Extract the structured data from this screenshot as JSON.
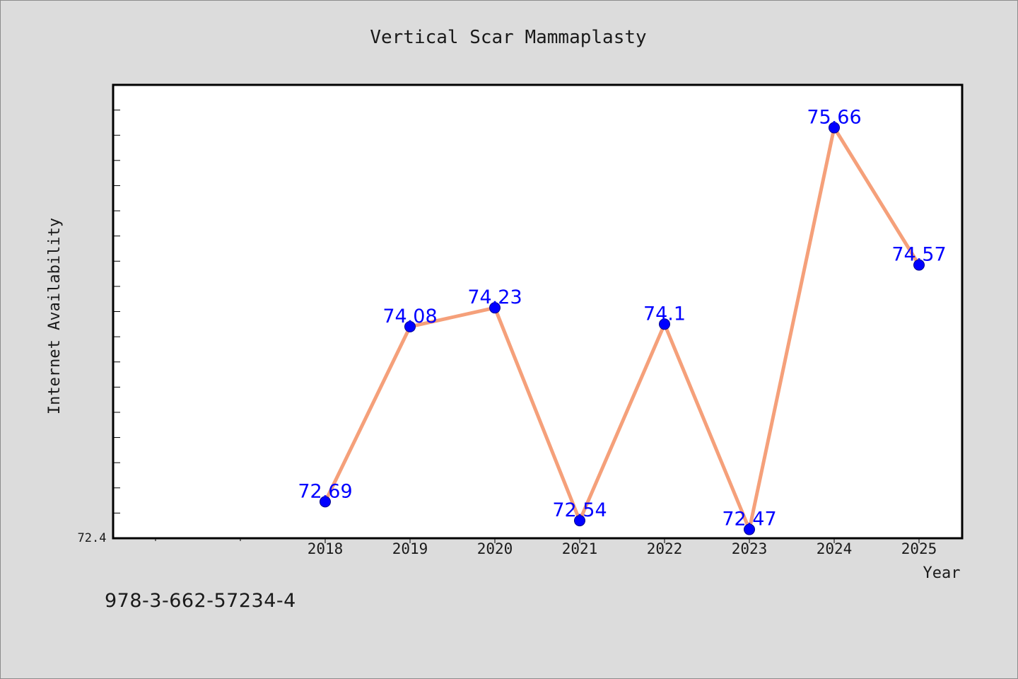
{
  "chart_data": {
    "type": "line",
    "title": "Vertical Scar Mammaplasty",
    "xlabel": "Year",
    "ylabel": "Internet Availability",
    "x": [
      "2018",
      "2019",
      "2020",
      "2021",
      "2022",
      "2023",
      "2024",
      "2025"
    ],
    "series": [
      {
        "values": [
          72.69,
          74.08,
          74.23,
          72.54,
          74.1,
          72.47,
          75.66,
          74.57
        ],
        "labels": [
          "72.69",
          "74.08",
          "74.23",
          "72.54",
          "74.1",
          "72.47",
          "75.66",
          "74.57"
        ],
        "line_color": "#f5a07a",
        "marker_color": "#0000ff"
      }
    ],
    "y_tick_labels": [
      "72.4"
    ],
    "ylim": [
      72.4,
      76.0
    ],
    "grid": false,
    "legend": "none"
  },
  "footer": {
    "isbn": "978-3-662-57234-4"
  }
}
